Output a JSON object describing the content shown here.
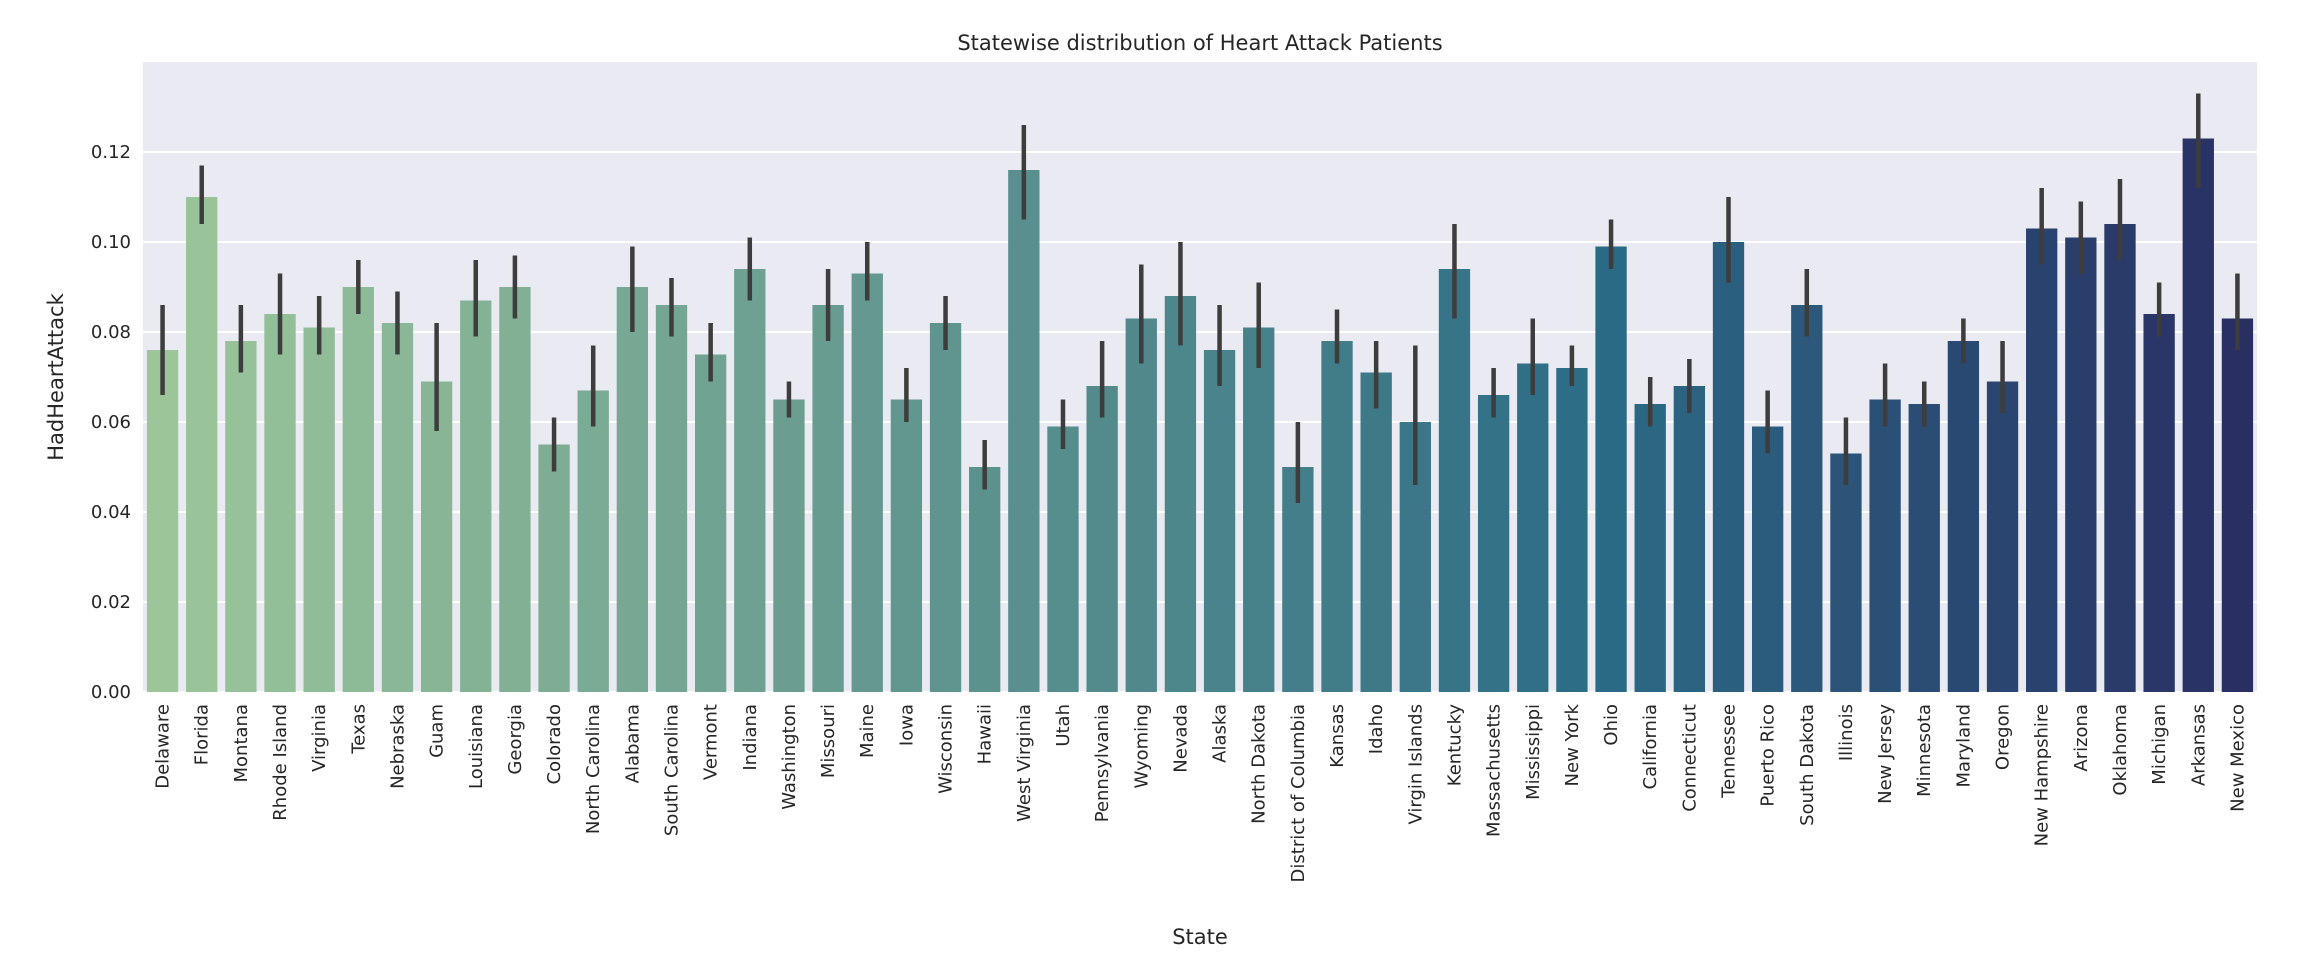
{
  "chart_data": {
    "type": "bar",
    "title": "Statewise distribution of Heart Attack Patients",
    "xlabel": "State",
    "ylabel": "HadHeartAttack",
    "ylim": [
      0,
      0.14
    ],
    "yticks": [
      "0.00",
      "0.02",
      "0.04",
      "0.06",
      "0.08",
      "0.10",
      "0.12"
    ],
    "grid": true,
    "legend": "none",
    "colors": {
      "start": "#9cc69a",
      "mid": "#2b6a85",
      "end": "#2a2f63",
      "background": "#eaeaf2",
      "errorbar": "#3d3d3d"
    },
    "categories": [
      "Delaware",
      "Florida",
      "Montana",
      "Rhode Island",
      "Virginia",
      "Texas",
      "Nebraska",
      "Guam",
      "Louisiana",
      "Georgia",
      "Colorado",
      "North Carolina",
      "Alabama",
      "South Carolina",
      "Vermont",
      "Indiana",
      "Washington",
      "Missouri",
      "Maine",
      "Iowa",
      "Wisconsin",
      "Hawaii",
      "West Virginia",
      "Utah",
      "Pennsylvania",
      "Wyoming",
      "Nevada",
      "Alaska",
      "North Dakota",
      "District of Columbia",
      "Kansas",
      "Idaho",
      "Virgin Islands",
      "Kentucky",
      "Massachusetts",
      "Mississippi",
      "New York",
      "Ohio",
      "California",
      "Connecticut",
      "Tennessee",
      "Puerto Rico",
      "South Dakota",
      "Illinois",
      "New Jersey",
      "Minnesota",
      "Maryland",
      "Oregon",
      "New Hampshire",
      "Arizona",
      "Oklahoma",
      "Michigan",
      "Arkansas",
      "New Mexico"
    ],
    "values": [
      0.076,
      0.11,
      0.078,
      0.084,
      0.081,
      0.09,
      0.082,
      0.069,
      0.087,
      0.09,
      0.055,
      0.067,
      0.09,
      0.086,
      0.075,
      0.094,
      0.065,
      0.086,
      0.093,
      0.065,
      0.082,
      0.05,
      0.116,
      0.059,
      0.068,
      0.083,
      0.088,
      0.076,
      0.081,
      0.05,
      0.078,
      0.071,
      0.06,
      0.094,
      0.066,
      0.073,
      0.072,
      0.099,
      0.064,
      0.068,
      0.1,
      0.059,
      0.086,
      0.053,
      0.065,
      0.064,
      0.078,
      0.069,
      0.103,
      0.101,
      0.104,
      0.084,
      0.123,
      0.083
    ],
    "err_low": [
      0.066,
      0.104,
      0.071,
      0.075,
      0.075,
      0.084,
      0.075,
      0.058,
      0.079,
      0.083,
      0.049,
      0.059,
      0.08,
      0.079,
      0.069,
      0.087,
      0.061,
      0.078,
      0.087,
      0.06,
      0.076,
      0.045,
      0.105,
      0.054,
      0.061,
      0.073,
      0.077,
      0.068,
      0.072,
      0.042,
      0.073,
      0.063,
      0.046,
      0.083,
      0.061,
      0.066,
      0.068,
      0.094,
      0.059,
      0.062,
      0.091,
      0.053,
      0.079,
      0.046,
      0.059,
      0.059,
      0.073,
      0.062,
      0.095,
      0.093,
      0.096,
      0.079,
      0.112,
      0.076
    ],
    "err_high": [
      0.086,
      0.117,
      0.086,
      0.093,
      0.088,
      0.096,
      0.089,
      0.082,
      0.096,
      0.097,
      0.061,
      0.077,
      0.099,
      0.092,
      0.082,
      0.101,
      0.069,
      0.094,
      0.1,
      0.072,
      0.088,
      0.056,
      0.126,
      0.065,
      0.078,
      0.095,
      0.1,
      0.086,
      0.091,
      0.06,
      0.085,
      0.078,
      0.077,
      0.104,
      0.072,
      0.083,
      0.077,
      0.105,
      0.07,
      0.074,
      0.11,
      0.067,
      0.094,
      0.061,
      0.073,
      0.069,
      0.083,
      0.078,
      0.112,
      0.109,
      0.114,
      0.091,
      0.133,
      0.093
    ]
  }
}
